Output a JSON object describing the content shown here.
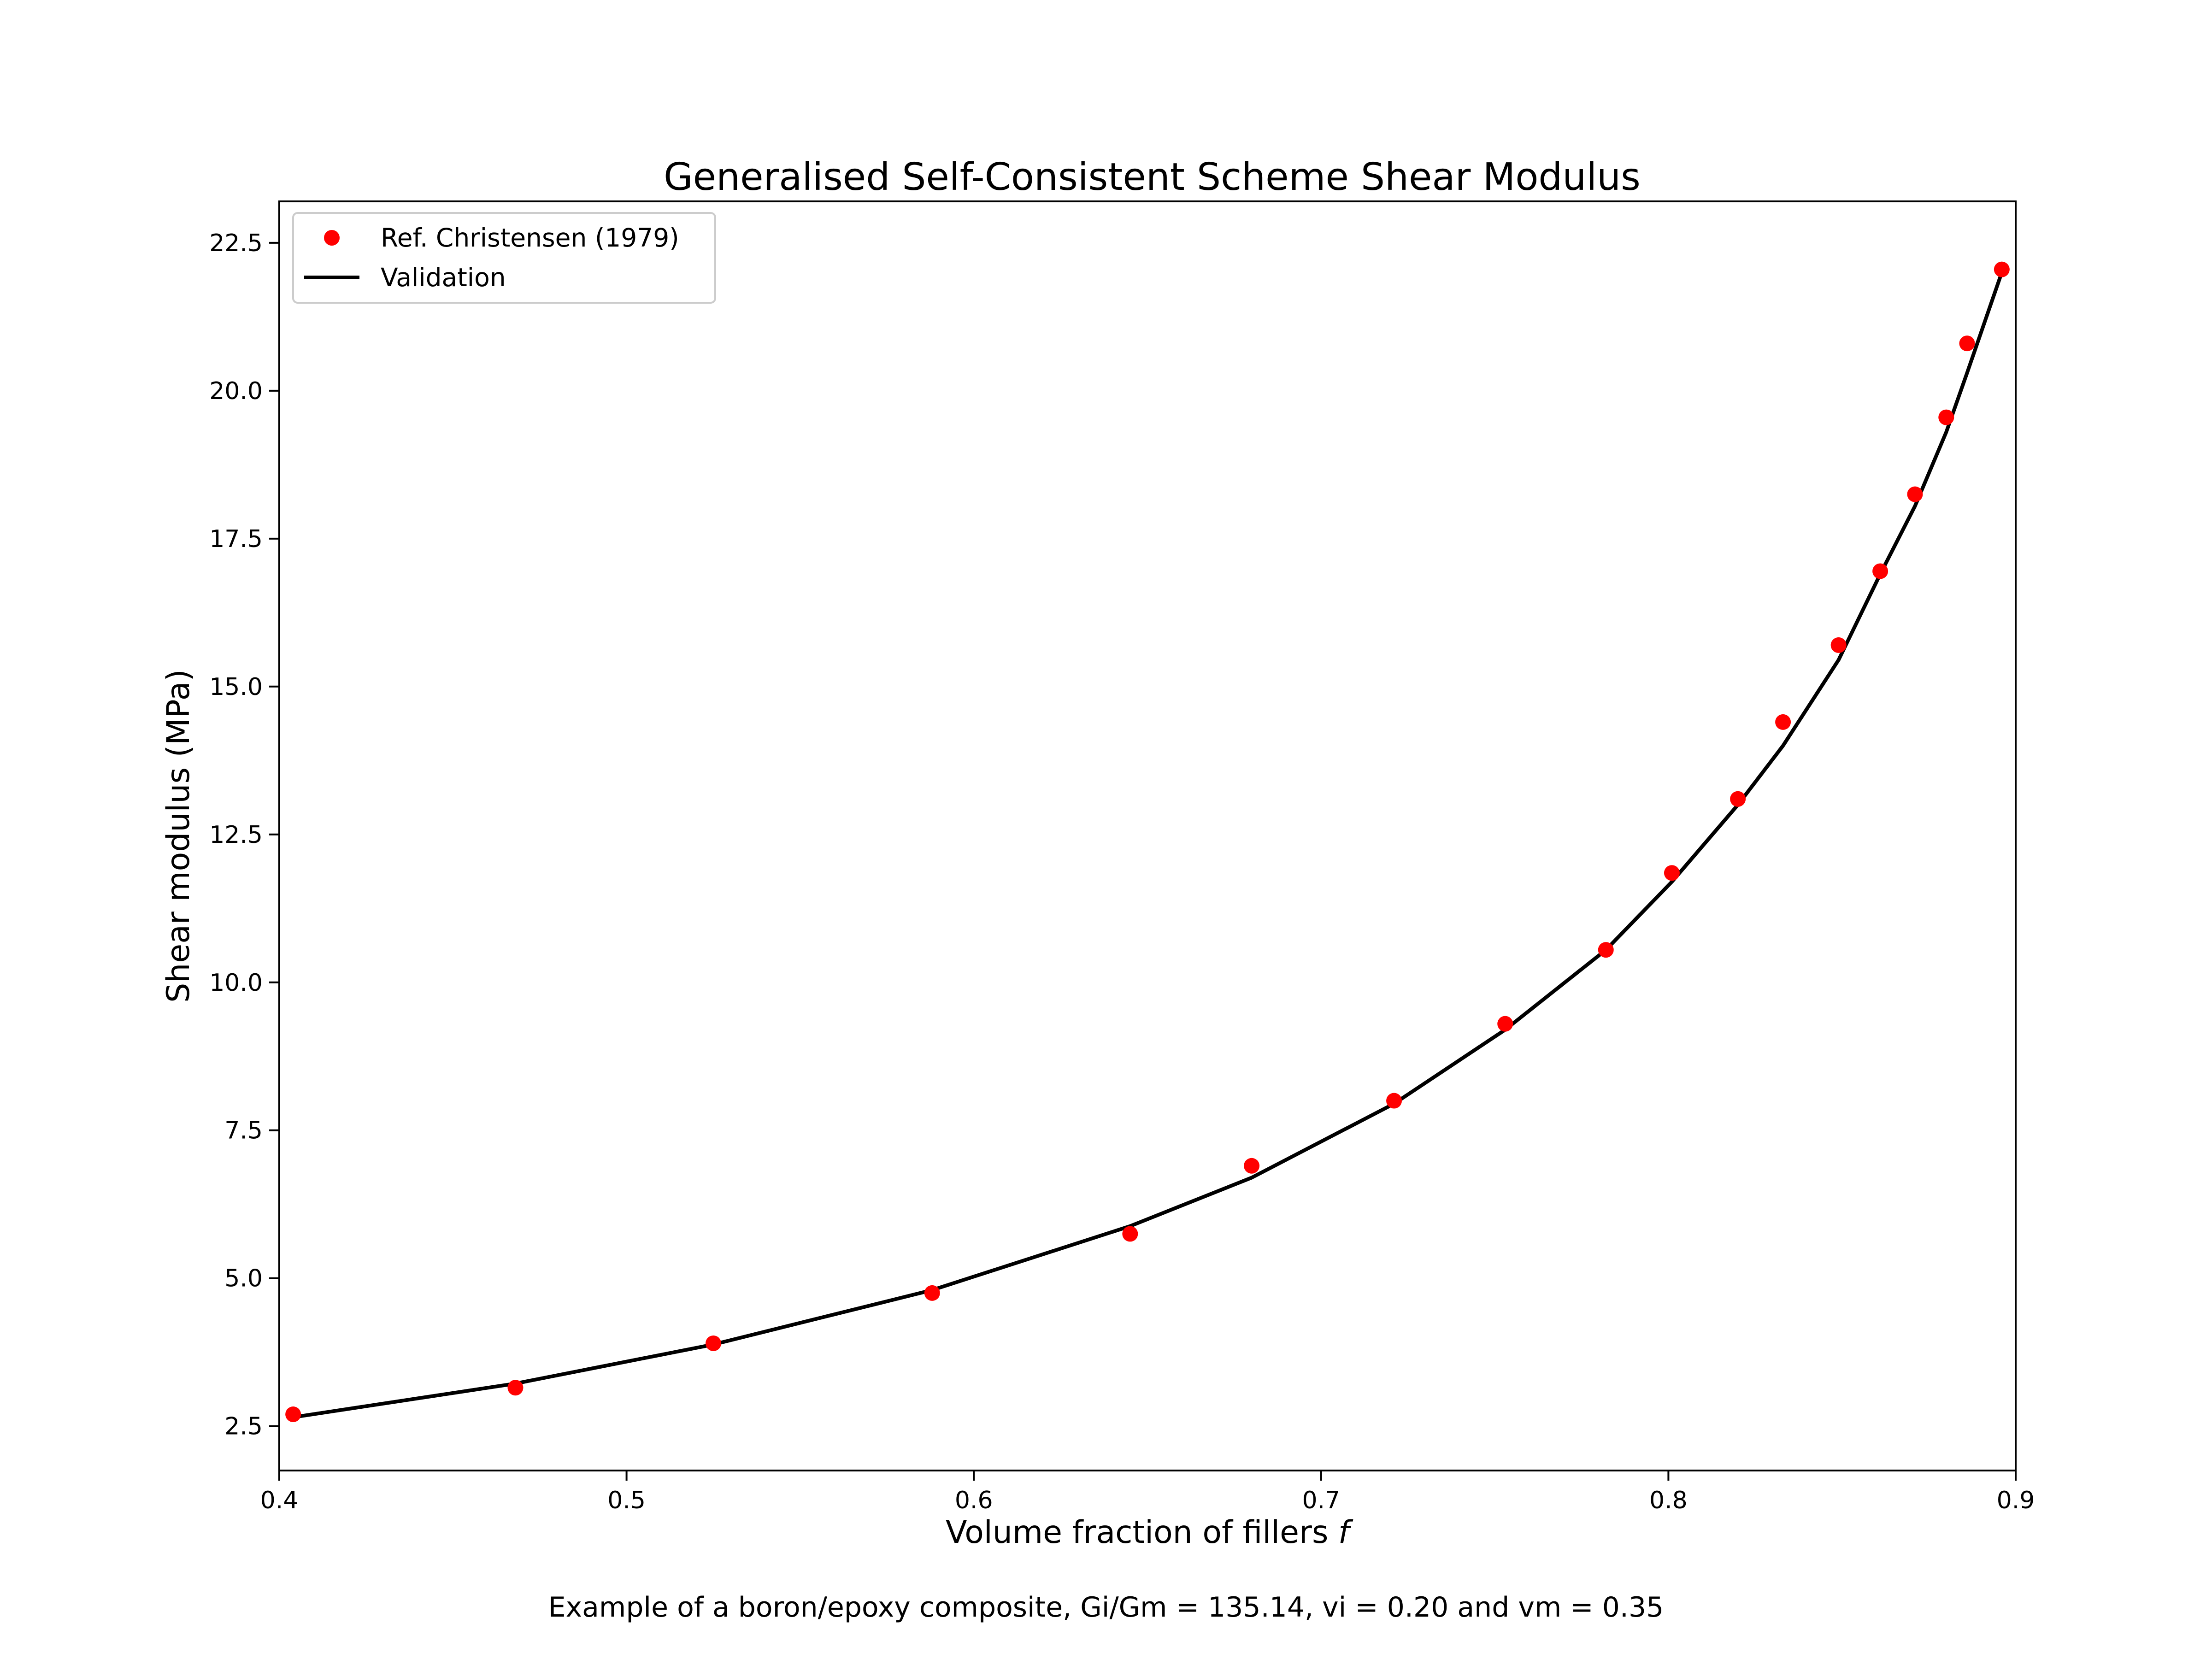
{
  "chart_data": {
    "type": "line",
    "title": "Generalised Self-Consistent Scheme Shear Modulus",
    "xlabel": "Volume fraction of fillers",
    "xlabel_symbol": "f",
    "ylabel": "Shear modulus (MPa)",
    "caption": "Example of a boron/epoxy composite, Gi/Gm = 135.14, vi = 0.20 and vm = 0.35",
    "xlim": [
      0.4,
      0.9
    ],
    "ylim": [
      1.75,
      23.2
    ],
    "x_ticks": [
      "0.4",
      "0.5",
      "0.6",
      "0.7",
      "0.8",
      "0.9"
    ],
    "y_ticks": [
      "2.5",
      "5.0",
      "7.5",
      "10.0",
      "12.5",
      "15.0",
      "17.5",
      "20.0",
      "22.5"
    ],
    "grid": false,
    "legend_position": "top-left",
    "series": [
      {
        "name": "Ref. Christensen (1979)",
        "kind": "scatter",
        "color": "#ff0000",
        "x": [
          0.404,
          0.468,
          0.525,
          0.588,
          0.645,
          0.68,
          0.721,
          0.753,
          0.782,
          0.801,
          0.82,
          0.833,
          0.849,
          0.861,
          0.871,
          0.88,
          0.886,
          0.896
        ],
        "y": [
          2.7,
          3.15,
          3.9,
          4.75,
          5.75,
          6.9,
          8.0,
          9.3,
          10.55,
          11.85,
          13.1,
          14.4,
          15.7,
          16.95,
          18.25,
          19.55,
          20.8,
          22.05
        ]
      },
      {
        "name": "Validation",
        "kind": "line",
        "color": "#000000",
        "x": [
          0.404,
          0.468,
          0.525,
          0.588,
          0.645,
          0.68,
          0.721,
          0.753,
          0.782,
          0.801,
          0.82,
          0.833,
          0.849,
          0.861,
          0.871,
          0.88,
          0.886,
          0.896
        ],
        "y": [
          2.65,
          3.22,
          3.88,
          4.8,
          5.88,
          6.7,
          7.95,
          9.2,
          10.55,
          11.7,
          13.0,
          14.0,
          15.45,
          16.9,
          18.05,
          19.3,
          20.3,
          22.0
        ]
      }
    ]
  }
}
